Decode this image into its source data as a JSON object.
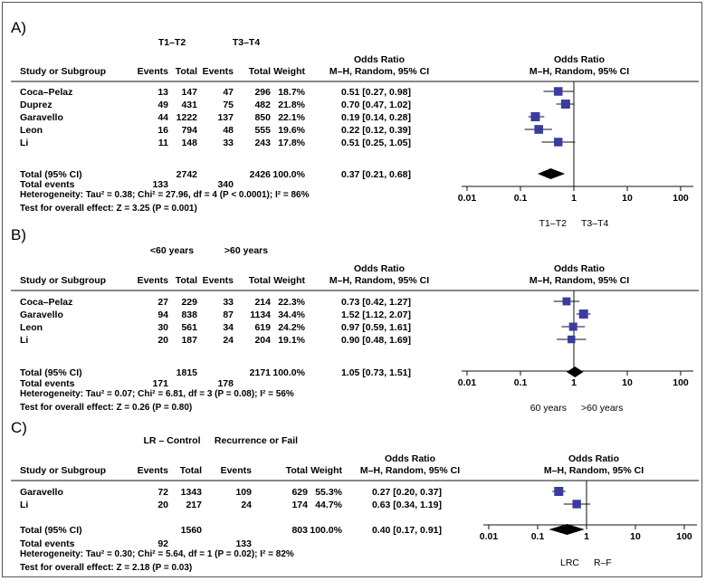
{
  "panels": [
    {
      "letter": "A)",
      "group1": "T1–T2",
      "group2": "T3–T4",
      "col_study": "Study or Subgroup",
      "col_events1": "Events",
      "col_total1": "Total",
      "col_events2": "Events",
      "col_total2": "Total",
      "col_weight": "Weight",
      "col_or": "Odds Ratio",
      "col_or_sub": "M–H, Random, 95% CI",
      "plot_title": "Odds Ratio",
      "plot_sub": "M–H, Random, 95% CI",
      "studies": [
        {
          "name": "Coca–Pelaz",
          "e1": "13",
          "t1": "147",
          "e2": "47",
          "t2": "296",
          "weight": "18.7%",
          "ci_text": "0.51 [0.27, 0.98]",
          "or": 0.51,
          "lo": 0.27,
          "hi": 0.98,
          "w": 18.7
        },
        {
          "name": "Duprez",
          "e1": "49",
          "t1": "431",
          "e2": "75",
          "t2": "482",
          "weight": "21.8%",
          "ci_text": "0.70 [0.47, 1.02]",
          "or": 0.7,
          "lo": 0.47,
          "hi": 1.02,
          "w": 21.8
        },
        {
          "name": "Garavello",
          "e1": "44",
          "t1": "1222",
          "e2": "137",
          "t2": "850",
          "weight": "22.1%",
          "ci_text": "0.19 [0.14, 0.28]",
          "or": 0.19,
          "lo": 0.14,
          "hi": 0.28,
          "w": 22.1
        },
        {
          "name": "Leon",
          "e1": "16",
          "t1": "794",
          "e2": "48",
          "t2": "555",
          "weight": "19.6%",
          "ci_text": "0.22 [0.12, 0.39]",
          "or": 0.22,
          "lo": 0.12,
          "hi": 0.39,
          "w": 19.6
        },
        {
          "name": "Li",
          "e1": "11",
          "t1": "148",
          "e2": "33",
          "t2": "243",
          "weight": "17.8%",
          "ci_text": "0.51 [0.25, 1.05]",
          "or": 0.51,
          "lo": 0.25,
          "hi": 1.05,
          "w": 17.8
        }
      ],
      "total": {
        "label": "Total (95% CI)",
        "t1": "2742",
        "t2": "2426",
        "weight": "100.0%",
        "ci_text": "0.37 [0.21, 0.68]",
        "or": 0.37,
        "lo": 0.21,
        "hi": 0.68
      },
      "total_events": {
        "label": "Total events",
        "e1": "133",
        "e2": "340"
      },
      "heterogeneity": "Heterogeneity: Tau² = 0.38; Chi² = 27.96, df = 4 (P < 0.0001); I² = 86%",
      "overall": "Test for overall effect: Z = 3.25 (P = 0.001)",
      "ticks": [
        "0.01",
        "0.1",
        "1",
        "10",
        "100"
      ],
      "favours_left": "T1–T2",
      "favours_right": "T3–T4"
    },
    {
      "letter": "B)",
      "group1": "<60 years",
      "group2": ">60 years",
      "col_study": "Study or Subgroup",
      "col_events1": "Events",
      "col_total1": "Total",
      "col_events2": "Events",
      "col_total2": "Total",
      "col_weight": "Weight",
      "col_or": "Odds Ratio",
      "col_or_sub": "M–H, Random, 95% CI",
      "plot_title": "Odds Ratio",
      "plot_sub": "M–H, Random, 95% CI",
      "studies": [
        {
          "name": "Coca–Pelaz",
          "e1": "27",
          "t1": "229",
          "e2": "33",
          "t2": "214",
          "weight": "22.3%",
          "ci_text": "0.73 [0.42, 1.27]",
          "or": 0.73,
          "lo": 0.42,
          "hi": 1.27,
          "w": 22.3
        },
        {
          "name": "Garavello",
          "e1": "94",
          "t1": "838",
          "e2": "87",
          "t2": "1134",
          "weight": "34.4%",
          "ci_text": "1.52 [1.12, 2.07]",
          "or": 1.52,
          "lo": 1.12,
          "hi": 2.07,
          "w": 34.4
        },
        {
          "name": "Leon",
          "e1": "30",
          "t1": "561",
          "e2": "34",
          "t2": "619",
          "weight": "24.2%",
          "ci_text": "0.97 [0.59, 1.61]",
          "or": 0.97,
          "lo": 0.59,
          "hi": 1.61,
          "w": 24.2
        },
        {
          "name": "Li",
          "e1": "20",
          "t1": "187",
          "e2": "24",
          "t2": "204",
          "weight": "19.1%",
          "ci_text": "0.90 [0.48, 1.69]",
          "or": 0.9,
          "lo": 0.48,
          "hi": 1.69,
          "w": 19.1
        }
      ],
      "total": {
        "label": "Total (95% CI)",
        "t1": "1815",
        "t2": "2171",
        "weight": "100.0%",
        "ci_text": "1.05 [0.73, 1.51]",
        "or": 1.05,
        "lo": 0.73,
        "hi": 1.51
      },
      "total_events": {
        "label": "Total events",
        "e1": "171",
        "e2": "178"
      },
      "heterogeneity": "Heterogeneity: Tau² = 0.07; Chi² = 6.81, df = 3 (P = 0.08); I² = 56%",
      "overall": "Test for overall effect: Z = 0.26 (P = 0.80)",
      "ticks": [
        "0.01",
        "0.1",
        "1",
        "10",
        "100"
      ],
      "favours_left": "60 years",
      "favours_right": ">60 years"
    },
    {
      "letter": "C)",
      "group1": "LR – Control",
      "group2": "Recurrence or Fail",
      "col_study": "Study or Subgroup",
      "col_events1": "Events",
      "col_total1": "Total",
      "col_events2": "Events",
      "col_total2": "Total",
      "col_weight": "Weight",
      "col_or": "Odds Ratio",
      "col_or_sub": "M–H, Random, 95% CI",
      "plot_title": "Odds Ratio",
      "plot_sub": "M–H, Random, 95% CI",
      "studies": [
        {
          "name": "Garavello",
          "e1": "72",
          "t1": "1343",
          "e2": "109",
          "t2": "629",
          "weight": "55.3%",
          "ci_text": "0.27 [0.20, 0.37]",
          "or": 0.27,
          "lo": 0.2,
          "hi": 0.37,
          "w": 55.3
        },
        {
          "name": "Li",
          "e1": "20",
          "t1": "217",
          "e2": "24",
          "t2": "174",
          "weight": "44.7%",
          "ci_text": "0.63 [0.34, 1.19]",
          "or": 0.63,
          "lo": 0.34,
          "hi": 1.19,
          "w": 44.7
        }
      ],
      "total": {
        "label": "Total (95% CI)",
        "t1": "1560",
        "t2": "803",
        "weight": "100.0%",
        "ci_text": "0.40 [0.17, 0.91]",
        "or": 0.4,
        "lo": 0.17,
        "hi": 0.91
      },
      "total_events": {
        "label": "Total events",
        "e1": "92",
        "e2": "133"
      },
      "heterogeneity": "Heterogeneity: Tau² = 0.30; Chi² = 5.64, df = 1 (P = 0.02); I² = 82%",
      "overall": "Test for overall effect: Z = 2.18 (P = 0.03)",
      "ticks": [
        "0.01",
        "0.1",
        "1",
        "10",
        "100"
      ],
      "favours_left": "LRC",
      "favours_right": "R–F"
    }
  ],
  "chart_data": [
    {
      "type": "forest",
      "studies": [
        "Coca–Pelaz",
        "Duprez",
        "Garavello",
        "Leon",
        "Li"
      ],
      "odds_ratio": [
        0.51,
        0.7,
        0.19,
        0.22,
        0.51
      ],
      "ci_low": [
        0.27,
        0.47,
        0.14,
        0.12,
        0.25
      ],
      "ci_high": [
        0.98,
        1.02,
        0.28,
        0.39,
        1.05
      ],
      "weight_percent": [
        18.7,
        21.8,
        22.1,
        19.6,
        17.8
      ],
      "pooled": {
        "or": 0.37,
        "lo": 0.21,
        "hi": 0.68
      },
      "x_scale": "log",
      "xlim": [
        0.01,
        100
      ]
    },
    {
      "type": "forest",
      "studies": [
        "Coca–Pelaz",
        "Garavello",
        "Leon",
        "Li"
      ],
      "odds_ratio": [
        0.73,
        1.52,
        0.97,
        0.9
      ],
      "ci_low": [
        0.42,
        1.12,
        0.59,
        0.48
      ],
      "ci_high": [
        1.27,
        2.07,
        1.61,
        1.69
      ],
      "weight_percent": [
        22.3,
        34.4,
        24.2,
        19.1
      ],
      "pooled": {
        "or": 1.05,
        "lo": 0.73,
        "hi": 1.51
      },
      "x_scale": "log",
      "xlim": [
        0.01,
        100
      ]
    },
    {
      "type": "forest",
      "studies": [
        "Garavello",
        "Li"
      ],
      "odds_ratio": [
        0.27,
        0.63
      ],
      "ci_low": [
        0.2,
        0.34
      ],
      "ci_high": [
        0.37,
        1.19
      ],
      "weight_percent": [
        55.3,
        44.7
      ],
      "pooled": {
        "or": 0.4,
        "lo": 0.17,
        "hi": 0.91
      },
      "x_scale": "log",
      "xlim": [
        0.01,
        100
      ]
    }
  ],
  "colors": {
    "marker": "#3b3ba0",
    "line": "#111111"
  }
}
